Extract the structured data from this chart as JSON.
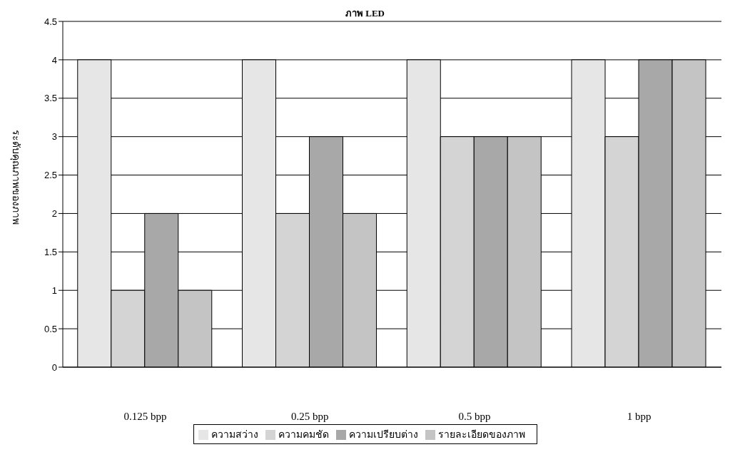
{
  "chart_data": {
    "type": "bar",
    "title": "ภาพ LED",
    "ylabel": "ระดับคุณภาพของภาพ",
    "categories": [
      "0.125 bpp",
      "0.25 bpp",
      "0.5 bpp",
      "1 bpp"
    ],
    "series": [
      {
        "name": "ความสว่าง",
        "color": "#e6e6e6",
        "values": [
          4,
          4,
          4,
          4
        ]
      },
      {
        "name": "ความคมชัด",
        "color": "#d4d4d4",
        "values": [
          1,
          2,
          3,
          3
        ]
      },
      {
        "name": "ความเปรียบต่าง",
        "color": "#a8a8a8",
        "values": [
          2,
          3,
          3,
          4
        ]
      },
      {
        "name": "รายละเอียดของภาพ",
        "color": "#c4c4c4",
        "values": [
          1,
          2,
          3,
          4
        ]
      }
    ],
    "ylim": [
      0,
      4.5
    ],
    "yticks": [
      0,
      0.5,
      1,
      1.5,
      2,
      2.5,
      3,
      3.5,
      4,
      4.5
    ],
    "grid": "y",
    "legend": "bottom"
  }
}
